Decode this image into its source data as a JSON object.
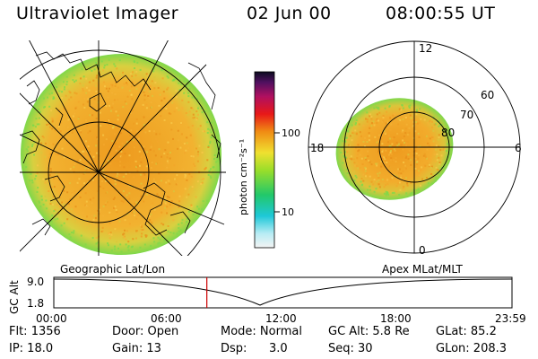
{
  "header": {
    "title": "Ultraviolet Imager",
    "date": "02 Jun 00",
    "time": "08:00:55 UT"
  },
  "geo_panel": {
    "label": "Geographic Lat/Lon"
  },
  "apex_panel": {
    "label": "Apex MLat/MLT",
    "lat_rings": [
      "80",
      "70",
      "60"
    ],
    "mlt_labels": [
      "12",
      "18",
      "6",
      "0"
    ]
  },
  "colorbar": {
    "unit_label": "photon cm⁻²s⁻¹",
    "ticks": [
      "100",
      "10"
    ]
  },
  "timeline": {
    "axis_label": "GC Alt",
    "y_ticks": [
      "9.0",
      "1.8"
    ],
    "x_ticks": [
      "00:00",
      "06:00",
      "12:00",
      "18:00",
      "23:59"
    ],
    "current_time_fraction": 0.334
  },
  "info": {
    "flt": "Flt: 1356",
    "ip": "IP: 18.0",
    "door": "Door: Open",
    "gain": "Gain: 13",
    "mode": "Mode: Normal",
    "dsp_label": "Dsp:",
    "dsp_value": "3.0",
    "gc_alt": "GC Alt: 5.8 Re",
    "seq": "Seq: 30",
    "glat": "GLat: 85.2",
    "glon": "GLon: 208.3"
  },
  "colors": {
    "aurora_main": "#f0a020",
    "aurora_edge": "#7fd84a",
    "now_marker": "#cc0000"
  }
}
